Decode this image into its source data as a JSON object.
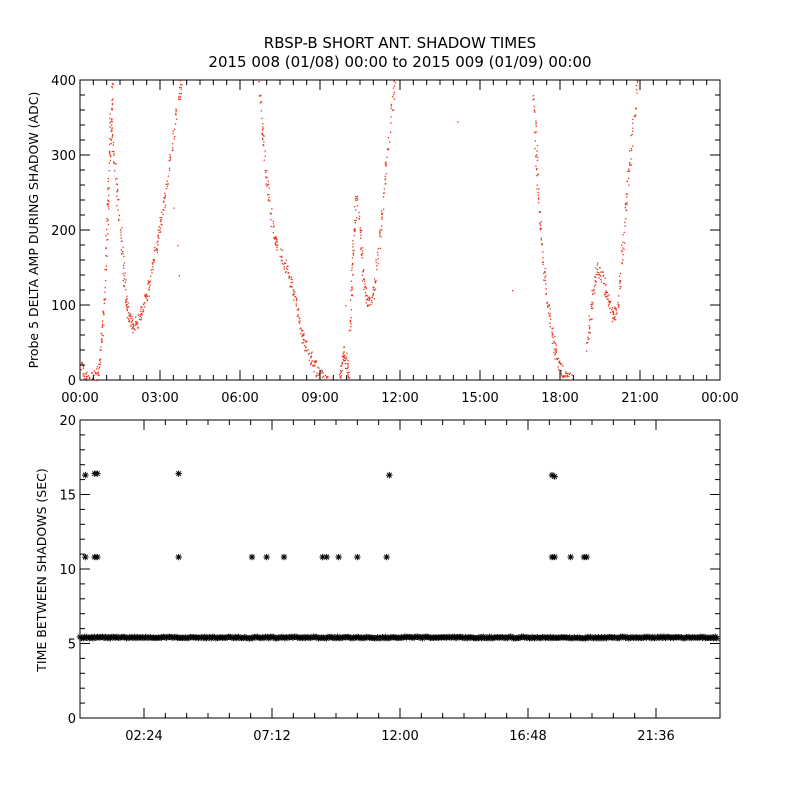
{
  "chart_data": [
    {
      "type": "scatter",
      "title": "RBSP-B SHORT ANT. SHADOW TIMES",
      "subtitle": "2015 008 (01/08) 00:00 to 2015 009 (01/09) 00:00",
      "ylabel": "Probe 5 DELTA AMP DURING SHADOW (ADC)",
      "xlabel": "",
      "x_unit": "hours",
      "xlim": [
        0,
        24
      ],
      "ylim": [
        0,
        400
      ],
      "xticks": [
        {
          "value": 0,
          "label": "00:00"
        },
        {
          "value": 3,
          "label": "03:00"
        },
        {
          "value": 6,
          "label": "06:00"
        },
        {
          "value": 9,
          "label": "09:00"
        },
        {
          "value": 12,
          "label": "12:00"
        },
        {
          "value": 15,
          "label": "15:00"
        },
        {
          "value": 18,
          "label": "18:00"
        },
        {
          "value": 21,
          "label": "21:00"
        },
        {
          "value": 24,
          "label": "00:00"
        }
      ],
      "yticks": [
        {
          "value": 0,
          "label": "0"
        },
        {
          "value": 100,
          "label": "100"
        },
        {
          "value": 200,
          "label": "200"
        },
        {
          "value": 300,
          "label": "300"
        },
        {
          "value": 400,
          "label": "400"
        }
      ],
      "grid": false,
      "color": "#e8331c",
      "series_trace": [
        {
          "x": [
            0.0,
            0.15,
            0.35,
            0.55,
            0.7,
            0.82,
            0.95,
            1.05,
            1.15,
            1.2
          ],
          "y": [
            25,
            5,
            0,
            5,
            20,
            60,
            150,
            250,
            350,
            400
          ]
        },
        {
          "x": [
            1.1,
            1.25,
            1.4,
            1.55,
            1.65,
            1.75,
            1.85,
            2.0,
            2.15,
            2.3,
            2.45,
            2.6,
            2.75,
            2.9,
            3.05,
            3.2,
            3.4,
            3.6,
            3.8
          ],
          "y": [
            360,
            300,
            240,
            180,
            130,
            100,
            80,
            70,
            80,
            95,
            110,
            130,
            160,
            190,
            220,
            250,
            300,
            360,
            400
          ]
        },
        {
          "x": [
            6.7,
            6.85,
            7.0,
            7.15,
            7.3,
            7.5,
            7.7,
            7.9,
            8.05,
            8.2,
            8.35,
            8.5,
            8.7,
            8.9,
            9.1,
            9.3
          ],
          "y": [
            400,
            320,
            260,
            220,
            190,
            170,
            150,
            130,
            110,
            80,
            55,
            40,
            25,
            12,
            3,
            0
          ]
        },
        {
          "x": [
            9.7,
            9.8,
            9.9,
            10.0,
            10.1
          ],
          "y": [
            5,
            20,
            40,
            20,
            5
          ]
        },
        {
          "x": [
            10.1,
            10.2,
            10.35,
            10.5,
            10.6,
            10.7,
            10.85,
            11.0,
            11.2,
            11.4,
            11.6,
            11.8
          ],
          "y": [
            60,
            150,
            250,
            200,
            140,
            110,
            100,
            120,
            180,
            260,
            340,
            400
          ]
        },
        {
          "x": [
            17.0,
            17.1,
            17.2,
            17.35,
            17.5,
            17.65,
            17.8,
            17.95,
            18.1,
            18.3,
            18.5
          ],
          "y": [
            380,
            300,
            220,
            160,
            110,
            70,
            40,
            20,
            8,
            2,
            0
          ]
        },
        {
          "x": [
            19.0,
            19.1,
            19.25,
            19.4,
            19.55,
            19.7,
            19.85,
            20.0,
            20.15,
            20.3,
            20.5,
            20.7,
            20.9
          ],
          "y": [
            40,
            80,
            120,
            150,
            140,
            120,
            100,
            85,
            100,
            160,
            250,
            330,
            400
          ]
        }
      ],
      "isolated_points": [
        {
          "x": 3.75,
          "y": 395
        },
        {
          "x": 3.5,
          "y": 230
        },
        {
          "x": 3.65,
          "y": 180
        },
        {
          "x": 3.7,
          "y": 140
        },
        {
          "x": 14.15,
          "y": 345
        },
        {
          "x": 16.2,
          "y": 120
        },
        {
          "x": 9.95,
          "y": 100
        }
      ]
    },
    {
      "type": "scatter",
      "ylabel": "TIME BETWEEN SHADOWS (SEC)",
      "xlabel": "",
      "x_unit": "hours",
      "xlim": [
        0,
        24
      ],
      "ylim": [
        0,
        20
      ],
      "xticks": [
        {
          "value": 2.4,
          "label": "02:24"
        },
        {
          "value": 7.2,
          "label": "07:12"
        },
        {
          "value": 12.0,
          "label": "12:00"
        },
        {
          "value": 16.8,
          "label": "16:48"
        },
        {
          "value": 21.6,
          "label": "21:36"
        }
      ],
      "yticks": [
        {
          "value": 0,
          "label": "0"
        },
        {
          "value": 5,
          "label": "5"
        },
        {
          "value": 10,
          "label": "10"
        },
        {
          "value": 15,
          "label": "15"
        },
        {
          "value": 20,
          "label": "20"
        }
      ],
      "grid": false,
      "color": "#000000",
      "marker": "asterisk",
      "baseline_band": {
        "from": 0.0,
        "to": 24.0,
        "y": 5.4
      },
      "series": [
        {
          "x": [
            0.2,
            0.55,
            0.65,
            3.7,
            11.6,
            17.7,
            17.8
          ],
          "y": [
            16.3,
            16.4,
            16.4,
            16.4,
            16.3,
            16.3,
            16.2
          ]
        },
        {
          "x": [
            0.2,
            0.55,
            0.65,
            3.7,
            6.45,
            7.0,
            7.65,
            9.1,
            9.25,
            9.7,
            10.4,
            11.5,
            17.7,
            17.8,
            18.4,
            18.9,
            19.0
          ],
          "y": [
            10.8,
            10.8,
            10.8,
            10.8,
            10.8,
            10.8,
            10.8,
            10.8,
            10.8,
            10.8,
            10.8,
            10.8,
            10.8,
            10.8,
            10.8,
            10.8,
            10.8
          ]
        }
      ]
    }
  ]
}
